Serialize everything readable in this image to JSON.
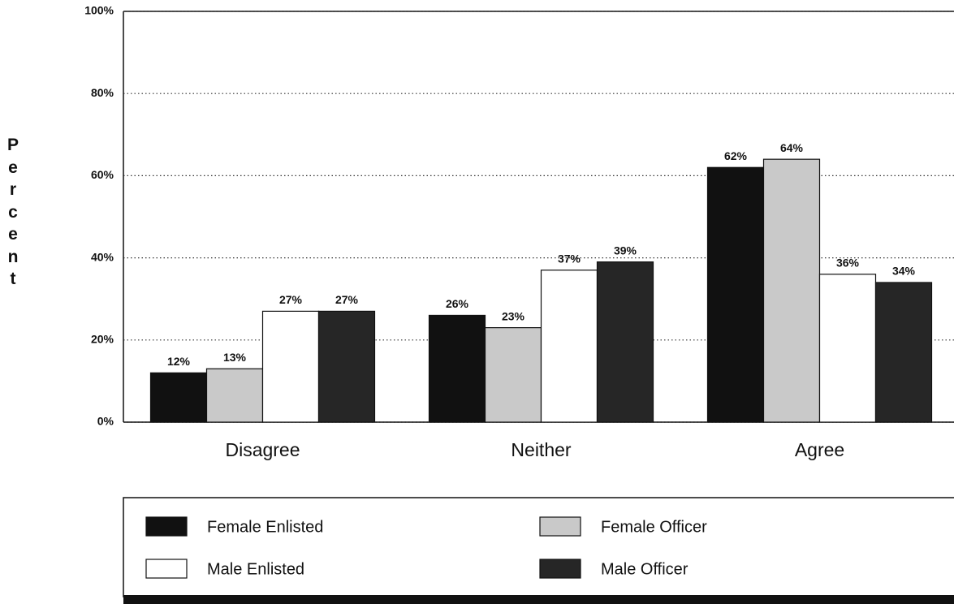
{
  "chart_data": {
    "type": "bar",
    "y_label": "Percent",
    "categories": [
      "Disagree",
      "Neither",
      "Agree"
    ],
    "series": [
      {
        "name": "Female Enlisted",
        "color": "#111111",
        "values": [
          12,
          26,
          62
        ],
        "value_labels": [
          "12%",
          "26%",
          "62%"
        ]
      },
      {
        "name": "Female Officer",
        "color": "#c9c9c9",
        "values": [
          13,
          23,
          64
        ],
        "value_labels": [
          "13%",
          "23%",
          "64%"
        ]
      },
      {
        "name": "Male Enlisted",
        "color": "#ffffff",
        "values": [
          27,
          37,
          36
        ],
        "value_labels": [
          "27%",
          "37%",
          "36%"
        ]
      },
      {
        "name": "Male Officer",
        "color": "#262626",
        "values": [
          27,
          39,
          34
        ],
        "value_labels": [
          "27%",
          "39%",
          "34%"
        ]
      }
    ],
    "ylim": [
      0,
      100
    ],
    "yticks": [
      {
        "value": 0,
        "label": "0%"
      },
      {
        "value": 20,
        "label": "20%"
      },
      {
        "value": 40,
        "label": "40%"
      },
      {
        "value": 60,
        "label": "60%"
      },
      {
        "value": 80,
        "label": "80%"
      },
      {
        "value": 100,
        "label": "100%"
      }
    ],
    "grid": true
  }
}
